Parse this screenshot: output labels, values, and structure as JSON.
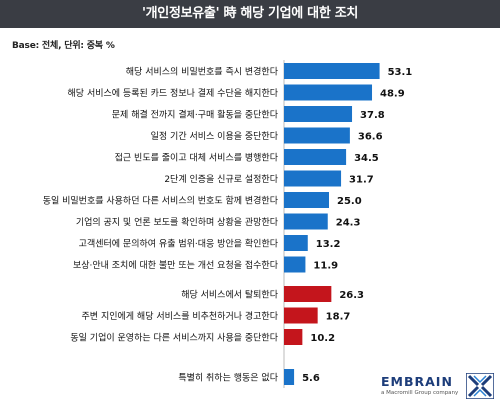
{
  "header": {
    "title": "'개인정보유출' 時 해당 기업에 대한 조치"
  },
  "note": {
    "base": "Base: 전체, 단위: 중복 %"
  },
  "brand": {
    "name": "EMBRAIN",
    "tagline": "a Macromill Group company"
  },
  "colors": {
    "blue": "#1a73c9",
    "red": "#c4151c",
    "header_bg": "#3a3d44"
  },
  "chart_data": {
    "type": "bar",
    "orientation": "horizontal",
    "title": "'개인정보유출' 時 해당 기업에 대한 조치",
    "xlim": [
      0,
      60
    ],
    "grid": false,
    "groups": [
      {
        "color": "blue",
        "items": [
          {
            "label": "해당 서비스의 비밀번호를 즉시 변경한다",
            "value": 53.1
          },
          {
            "label": "해당 서비스에 등록된 카드 정보나 결제 수단을 해지한다",
            "value": 48.9
          },
          {
            "label": "문제 해결 전까지 결제·구매 활동을 중단한다",
            "value": 37.8
          },
          {
            "label": "일정 기간 서비스 이용을 중단한다",
            "value": 36.6
          },
          {
            "label": "접근 빈도를 줄이고 대체 서비스를 병행한다",
            "value": 34.5
          },
          {
            "label": "2단계 인증을 신규로 설정한다",
            "value": 31.7
          },
          {
            "label": "동일 비밀번호를 사용하던 다른 서비스의 번호도 함께 변경한다",
            "value": 25.0
          },
          {
            "label": "기업의 공지 및 언론 보도를 확인하며 상황을 관망한다",
            "value": 24.3
          },
          {
            "label": "고객센터에 문의하여 유출 범위·대응 방안을 확인한다",
            "value": 13.2
          },
          {
            "label": "보상·안내 조치에 대한 불만 또는 개선 요청을 접수한다",
            "value": 11.9
          }
        ]
      },
      {
        "color": "red",
        "items": [
          {
            "label": "해당 서비스에서 탈퇴한다",
            "value": 26.3
          },
          {
            "label": "주변 지인에게 해당 서비스를 비추천하거나 경고한다",
            "value": 18.7
          },
          {
            "label": "동일 기업이 운영하는 다른 서비스까지 사용을 중단한다",
            "value": 10.2
          }
        ]
      },
      {
        "color": "blue",
        "items": [
          {
            "label": "특별히 취하는 행동은 없다",
            "value": 5.6
          }
        ]
      }
    ]
  }
}
